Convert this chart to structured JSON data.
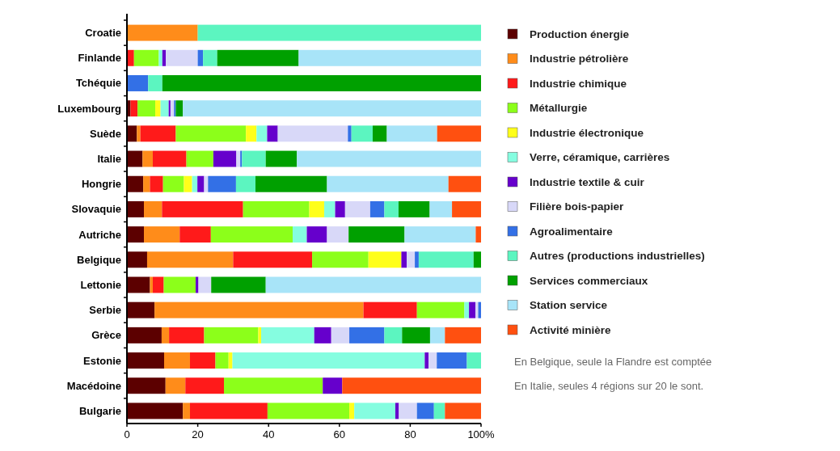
{
  "chart_data": {
    "type": "bar",
    "orientation": "horizontal",
    "stacked": true,
    "categories": [
      "Croatie",
      "Finlande",
      "Tchéquie",
      "Luxembourg",
      "Suède",
      "Italie",
      "Hongrie",
      "Slovaquie",
      "Autriche",
      "Belgique",
      "Lettonie",
      "Serbie",
      "Grèce",
      "Estonie",
      "Macédoine",
      "Bulgarie"
    ],
    "series": [
      {
        "name": "Production énergie",
        "color": "#5c0000",
        "values": [
          null,
          null,
          null,
          1,
          2.8,
          4.4,
          4.6,
          4.8,
          4.8,
          5.7,
          6.5,
          7.8,
          9.8,
          10.5,
          10.9,
          15.8
        ]
      },
      {
        "name": "Industrie pétrolière",
        "color": "#ff8c1a",
        "values": [
          20,
          null,
          null,
          null,
          1,
          2.9,
          1.9,
          5.1,
          10.1,
          24.3,
          0.8,
          59,
          2.1,
          7.3,
          5.6,
          2
        ]
      },
      {
        "name": "Industrie chimique",
        "color": "#ff1a1a",
        "values": [
          null,
          2,
          null,
          2,
          10,
          9.5,
          3.7,
          22.9,
          8.8,
          22.3,
          3.1,
          15.1,
          9.9,
          7.2,
          10.9,
          21.9
        ]
      },
      {
        "name": "Métallurgie",
        "color": "#8cff1a",
        "values": [
          null,
          7,
          null,
          5,
          19.8,
          7.6,
          5.9,
          18.7,
          23.1,
          15.9,
          9,
          13.4,
          15.3,
          3.7,
          27.9,
          23.1
        ]
      },
      {
        "name": "Industrie électronique",
        "color": "#ffff1a",
        "values": [
          null,
          null,
          null,
          1.5,
          3,
          null,
          2.3,
          4.2,
          null,
          9.3,
          null,
          null,
          0.8,
          1.1,
          null,
          1.4
        ]
      },
      {
        "name": "Verre, céramique, carrières",
        "color": "#85fde0",
        "values": [
          null,
          1,
          null,
          2.3,
          3,
          null,
          1.5,
          3.1,
          4,
          null,
          null,
          1.3,
          15,
          54.3,
          null,
          11.6
        ]
      },
      {
        "name": "Industrie textile & cuir",
        "color": "#6600cc",
        "values": [
          null,
          1,
          null,
          0.5,
          3,
          6.5,
          1.9,
          2.8,
          5.7,
          1.5,
          0.8,
          1.8,
          4.8,
          1.1,
          5.5,
          1
        ]
      },
      {
        "name": "Filière bois-papier",
        "color": "#d8d8f8",
        "values": [
          null,
          9,
          null,
          1,
          19.8,
          1.1,
          1.1,
          7.1,
          6.1,
          2.3,
          3.6,
          0.8,
          5.1,
          2.3,
          null,
          5.1
        ]
      },
      {
        "name": "Agroalimentaire",
        "color": "#3370e6",
        "values": [
          null,
          1.5,
          6,
          0.5,
          1,
          0.5,
          7.9,
          4,
          null,
          1.1,
          null,
          0.8,
          9.9,
          8.5,
          null,
          4.8
        ]
      },
      {
        "name": "Autres (productions industrielles)",
        "color": "#5cf5c0",
        "values": [
          80,
          4,
          4,
          null,
          6,
          6.7,
          5.5,
          4,
          null,
          15.5,
          null,
          null,
          5,
          4,
          null,
          3.1
        ]
      },
      {
        "name": "Services commerciaux",
        "color": "#00a000",
        "values": [
          null,
          23,
          90,
          2,
          4,
          8.8,
          20.2,
          8.8,
          15.8,
          2.1,
          15.4,
          null,
          7.9,
          null,
          null,
          null
        ]
      },
      {
        "name": "Station service",
        "color": "#a8e4f8",
        "values": [
          null,
          51.5,
          null,
          84.2,
          14.2,
          52,
          34.3,
          6.3,
          20.1,
          null,
          60.8,
          null,
          4.2,
          null,
          null,
          null
        ]
      },
      {
        "name": "Activité minière",
        "color": "#ff5010",
        "values": [
          null,
          null,
          null,
          null,
          12.4,
          null,
          9.2,
          8.2,
          1.5,
          null,
          null,
          null,
          10.2,
          null,
          39.2,
          10.2
        ]
      }
    ],
    "xlim": [
      0,
      100
    ],
    "xticks": [
      0,
      20,
      40,
      60,
      80,
      {
        "value": 100,
        "label": "100%"
      }
    ],
    "legend": "right",
    "grid": false,
    "annotations": [
      "En Belgique, seule la Flandre est comptée",
      "En Italie, seules 4 régions sur 20 le sont."
    ]
  }
}
